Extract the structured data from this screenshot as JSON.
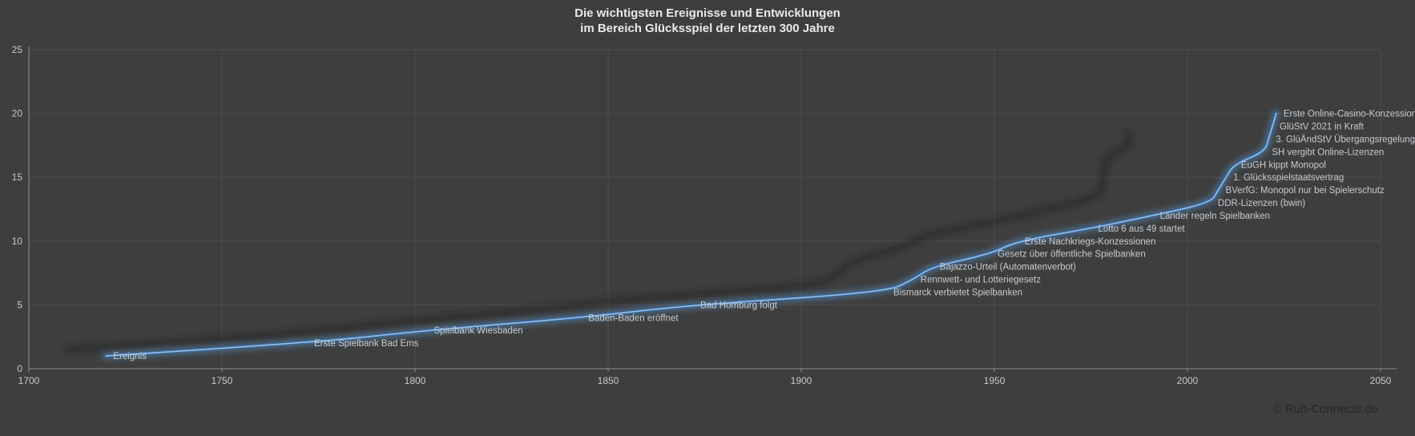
{
  "header": {
    "title_line1": "Die wichtigsten Ereignisse und Entwicklungen",
    "title_line2": "im Bereich Glücksspiel der letzten 300 Jahre"
  },
  "footer": {
    "copyright": "© Ruh-Connects.de"
  },
  "colors": {
    "background": "#3e3e3e",
    "gridline": "#4d4d4d",
    "axis": "#8f8f8f",
    "tick_label": "#c9c9c9",
    "title": "#e9e9e9",
    "data_label": "#c6ccd2",
    "line": "#3a69a0",
    "line_core": "#9dc3e6",
    "line_glow": "#5b9bd5",
    "shadow": "#1f1f1f",
    "copyright": "#262626"
  },
  "chart_data": {
    "type": "line",
    "title": "Die wichtigsten Ereignisse und Entwicklungen im Bereich Glücksspiel der letzten 300 Jahre",
    "xlabel": "",
    "ylabel": "",
    "x_axis": {
      "min": 1700,
      "max": 2050,
      "tick_interval": 50,
      "ticks": [
        1700,
        1750,
        1800,
        1850,
        1900,
        1950,
        2000,
        2050
      ]
    },
    "y_axis": {
      "min": 0,
      "max": 25,
      "tick_interval": 5,
      "ticks": [
        0,
        5,
        10,
        15,
        20,
        25
      ]
    },
    "grid": true,
    "legend_position": "none",
    "smooth": true,
    "series": [
      {
        "name": "Ereignis",
        "color": "#4f81bd",
        "points": [
          {
            "x": 1720,
            "y": 1,
            "label": "Ereignis"
          },
          {
            "x": 1772,
            "y": 2,
            "label": "Erste Spielbank Bad Ems"
          },
          {
            "x": 1803,
            "y": 3,
            "label": "Spielbank Wiesbaden"
          },
          {
            "x": 1843,
            "y": 4,
            "label": "Baden-Baden eröffnet"
          },
          {
            "x": 1872,
            "y": 5,
            "label": "Bad Homburg folgt"
          },
          {
            "x": 1922,
            "y": 6,
            "label": "Bismarck verbietet Spielbanken"
          },
          {
            "x": 1929,
            "y": 7,
            "label": "Rennwett- und Lotteriegesetz"
          },
          {
            "x": 1934,
            "y": 8,
            "label": "Bajazzo-Urteil (Automatenverbot)"
          },
          {
            "x": 1949,
            "y": 9,
            "label": "Gesetz über öffentliche Spielbanken"
          },
          {
            "x": 1956,
            "y": 10,
            "label": "Erste Nachkriegs-Konzessionen"
          },
          {
            "x": 1975,
            "y": 11,
            "label": "Lotto 6 aus 49 startet"
          },
          {
            "x": 1991,
            "y": 12,
            "label": "Länder regeln Spielbanken"
          },
          {
            "x": 2006,
            "y": 13,
            "label": "DDR-Lizenzen (bwin)"
          },
          {
            "x": 2008,
            "y": 14,
            "label": "BVerfG: Monopol nur bei Spielerschutz"
          },
          {
            "x": 2010,
            "y": 15,
            "label": "1. Glücksspielstaatsvertrag"
          },
          {
            "x": 2012,
            "y": 16,
            "label": "EuGH kippt Monopol"
          },
          {
            "x": 2020,
            "y": 17,
            "label": "SH vergibt Online-Lizenzen"
          },
          {
            "x": 2021,
            "y": 18,
            "label": "3. GlüÄndStV Übergangsregelung"
          },
          {
            "x": 2022,
            "y": 19,
            "label": "GlüStV 2021 in Kraft"
          },
          {
            "x": 2023,
            "y": 20,
            "label": "Erste Online-Casino-Konzessionen"
          }
        ]
      }
    ]
  }
}
